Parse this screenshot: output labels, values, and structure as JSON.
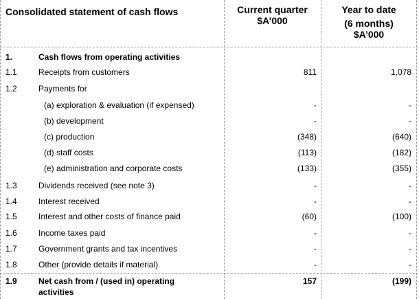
{
  "header": {
    "title": "Consolidated statement of cash flows",
    "col1_line1": "Current quarter",
    "col1_line2": "$A’000",
    "col2_line1": "Year to date",
    "col2_line2": "(6 months)",
    "col2_line3": "$A’000"
  },
  "rows": [
    {
      "num": "1.",
      "label": "Cash flows from operating activities",
      "cq": "",
      "ytd": "",
      "bold": true
    },
    {
      "num": "1.1",
      "label": "Receipts from customers",
      "cq": "811",
      "ytd": "1,078"
    },
    {
      "num": "1.2",
      "label": "Payments for",
      "cq": "",
      "ytd": ""
    },
    {
      "num": "",
      "label": "(a)  exploration & evaluation (if expensed)",
      "cq": "-",
      "ytd": "-"
    },
    {
      "num": "",
      "label": "(b)  development",
      "cq": "-",
      "ytd": "-"
    },
    {
      "num": "",
      "label": "(c)  production",
      "cq": "(348)",
      "ytd": "(640)"
    },
    {
      "num": "",
      "label": "(d)  staff costs",
      "cq": "(113)",
      "ytd": "(182)"
    },
    {
      "num": "",
      "label": "(e)  administration and corporate costs",
      "cq": "(133)",
      "ytd": "(355)"
    },
    {
      "num": "1.3",
      "label": "Dividends received (see note 3)",
      "cq": "-",
      "ytd": "-"
    },
    {
      "num": "1.4",
      "label": "Interest received",
      "cq": "-",
      "ytd": "-"
    },
    {
      "num": "1.5",
      "label": "Interest and other costs of finance paid",
      "cq": "(60)",
      "ytd": "(100)"
    },
    {
      "num": "1.6",
      "label": "Income taxes paid",
      "cq": "-",
      "ytd": "-"
    },
    {
      "num": "1.7",
      "label": "Government grants and tax incentives",
      "cq": "-",
      "ytd": "-"
    },
    {
      "num": "1.8",
      "label": "Other (provide details if material)",
      "cq": "-",
      "ytd": "-"
    },
    {
      "num": "1.9",
      "label": "Net cash from / (used in) operating",
      "label2": "activities",
      "cq": "157",
      "ytd": "(199)",
      "bold": true
    }
  ]
}
